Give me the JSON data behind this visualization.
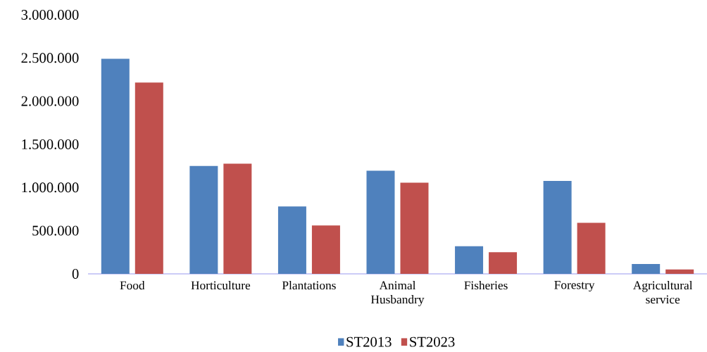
{
  "chart_data": {
    "type": "bar",
    "categories": [
      "Food",
      "Horticulture",
      "Plantations",
      "Animal Husbandry",
      "Fisheries",
      "Forestry",
      "Agricultural service"
    ],
    "series": [
      {
        "name": "ST2013",
        "color": "#4f81bd",
        "values": [
          2490000,
          1250000,
          780000,
          1195000,
          320000,
          1075000,
          115000
        ]
      },
      {
        "name": "ST2023",
        "color": "#c0504d",
        "values": [
          2215000,
          1275000,
          560000,
          1055000,
          250000,
          590000,
          50000
        ]
      }
    ],
    "ylim": [
      0,
      3000000
    ],
    "yticks": [
      0,
      {
        "value": 500000,
        "label": "500.000"
      },
      {
        "value": 1000000,
        "label": "1.000.000"
      },
      {
        "value": 1500000,
        "label": "1.500.000"
      },
      {
        "value": 2000000,
        "label": "2.000.000"
      },
      {
        "value": 2500000,
        "label": "2.500.000"
      },
      {
        "value": 3000000,
        "label": "3.000.000"
      }
    ],
    "legend": "bottom"
  }
}
